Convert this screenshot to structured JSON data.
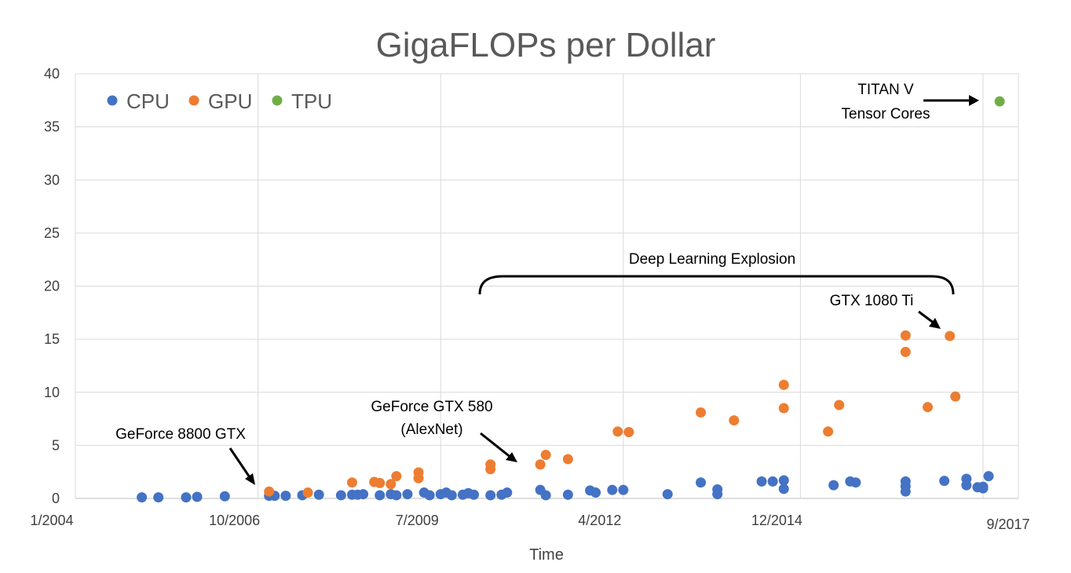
{
  "chart_data": {
    "type": "scatter",
    "title": "GigaFLOPs per Dollar",
    "xlabel": "Time",
    "ylabel": "",
    "xlim": [
      "2004-01",
      "2017-12"
    ],
    "ylim": [
      0,
      40
    ],
    "y_ticks": [
      0,
      5,
      10,
      15,
      20,
      25,
      30,
      35,
      40
    ],
    "x_ticks": [
      {
        "value": "2004-01",
        "label": "1/2004"
      },
      {
        "value": "2006-10",
        "label": "10/2006"
      },
      {
        "value": "2009-07",
        "label": "7/2009"
      },
      {
        "value": "2012-04",
        "label": "4/2012"
      },
      {
        "value": "2014-12",
        "label": "12/2014"
      },
      {
        "value": "2017-09",
        "label": "9/2017"
      }
    ],
    "grid": true,
    "legend_position": "top-left",
    "series": [
      {
        "name": "CPU",
        "color": "#4472C4",
        "points": [
          [
            "2005-01",
            0.1
          ],
          [
            "2005-04",
            0.1
          ],
          [
            "2005-09",
            0.1
          ],
          [
            "2005-11",
            0.15
          ],
          [
            "2006-04",
            0.2
          ],
          [
            "2006-12",
            0.25
          ],
          [
            "2007-01",
            0.25
          ],
          [
            "2007-03",
            0.25
          ],
          [
            "2007-06",
            0.3
          ],
          [
            "2007-09",
            0.35
          ],
          [
            "2008-01",
            0.3
          ],
          [
            "2008-03",
            0.35
          ],
          [
            "2008-04",
            0.35
          ],
          [
            "2008-05",
            0.4
          ],
          [
            "2008-08",
            0.3
          ],
          [
            "2008-10",
            0.4
          ],
          [
            "2008-11",
            0.3
          ],
          [
            "2009-01",
            0.4
          ],
          [
            "2009-04",
            0.55
          ],
          [
            "2009-05",
            0.3
          ],
          [
            "2009-07",
            0.4
          ],
          [
            "2009-08",
            0.55
          ],
          [
            "2009-09",
            0.3
          ],
          [
            "2009-11",
            0.35
          ],
          [
            "2009-12",
            0.5
          ],
          [
            "2010-01",
            0.35
          ],
          [
            "2010-04",
            0.3
          ],
          [
            "2010-06",
            0.35
          ],
          [
            "2010-07",
            0.55
          ],
          [
            "2011-01",
            0.8
          ],
          [
            "2011-02",
            0.3
          ],
          [
            "2011-06",
            0.35
          ],
          [
            "2011-10",
            0.75
          ],
          [
            "2011-11",
            0.55
          ],
          [
            "2012-02",
            0.8
          ],
          [
            "2012-04",
            0.8
          ],
          [
            "2012-12",
            0.4
          ],
          [
            "2013-06",
            1.5
          ],
          [
            "2013-09",
            0.85
          ],
          [
            "2013-09",
            0.4
          ],
          [
            "2014-05",
            1.6
          ],
          [
            "2014-07",
            1.6
          ],
          [
            "2014-09",
            1.7
          ],
          [
            "2014-09",
            0.9
          ],
          [
            "2015-06",
            1.25
          ],
          [
            "2015-09",
            1.6
          ],
          [
            "2015-10",
            1.5
          ],
          [
            "2016-07",
            1.6
          ],
          [
            "2016-07",
            1.15
          ],
          [
            "2016-07",
            0.65
          ],
          [
            "2017-02",
            1.65
          ],
          [
            "2017-06",
            1.85
          ],
          [
            "2017-06",
            1.25
          ],
          [
            "2017-08",
            1.05
          ],
          [
            "2017-09",
            0.95
          ],
          [
            "2017-09",
            1.1
          ],
          [
            "2017-10",
            2.1
          ]
        ]
      },
      {
        "name": "GPU",
        "color": "#ED7D31",
        "points": [
          [
            "2006-12",
            0.65
          ],
          [
            "2007-07",
            0.55
          ],
          [
            "2008-03",
            1.5
          ],
          [
            "2008-07",
            1.55
          ],
          [
            "2008-08",
            1.45
          ],
          [
            "2008-10",
            1.35
          ],
          [
            "2008-11",
            2.1
          ],
          [
            "2009-03",
            2.45
          ],
          [
            "2009-03",
            1.9
          ],
          [
            "2010-04",
            3.2
          ],
          [
            "2010-04",
            2.75
          ],
          [
            "2011-01",
            3.2
          ],
          [
            "2011-02",
            4.1
          ],
          [
            "2011-06",
            3.7
          ],
          [
            "2012-03",
            6.3
          ],
          [
            "2012-05",
            6.25
          ],
          [
            "2013-06",
            8.1
          ],
          [
            "2013-12",
            7.35
          ],
          [
            "2014-09",
            10.7
          ],
          [
            "2014-09",
            8.5
          ],
          [
            "2015-05",
            6.3
          ],
          [
            "2015-07",
            8.8
          ],
          [
            "2016-07",
            13.8
          ],
          [
            "2016-07",
            15.35
          ],
          [
            "2016-11",
            8.6
          ],
          [
            "2017-03",
            15.3
          ],
          [
            "2017-04",
            9.6
          ]
        ]
      },
      {
        "name": "TPU",
        "color": "#70AD47",
        "points": [
          [
            "2017-12",
            37.4
          ]
        ]
      }
    ],
    "annotations": {
      "geforce_8800": "GeForce 8800 GTX",
      "gtx_580_line1": "GeForce GTX 580",
      "gtx_580_line2": "(AlexNet)",
      "deep_learning": "Deep Learning Explosion",
      "gtx_1080": "GTX 1080 Ti",
      "titan_line1": "TITAN V",
      "titan_line2": "Tensor Cores"
    }
  }
}
